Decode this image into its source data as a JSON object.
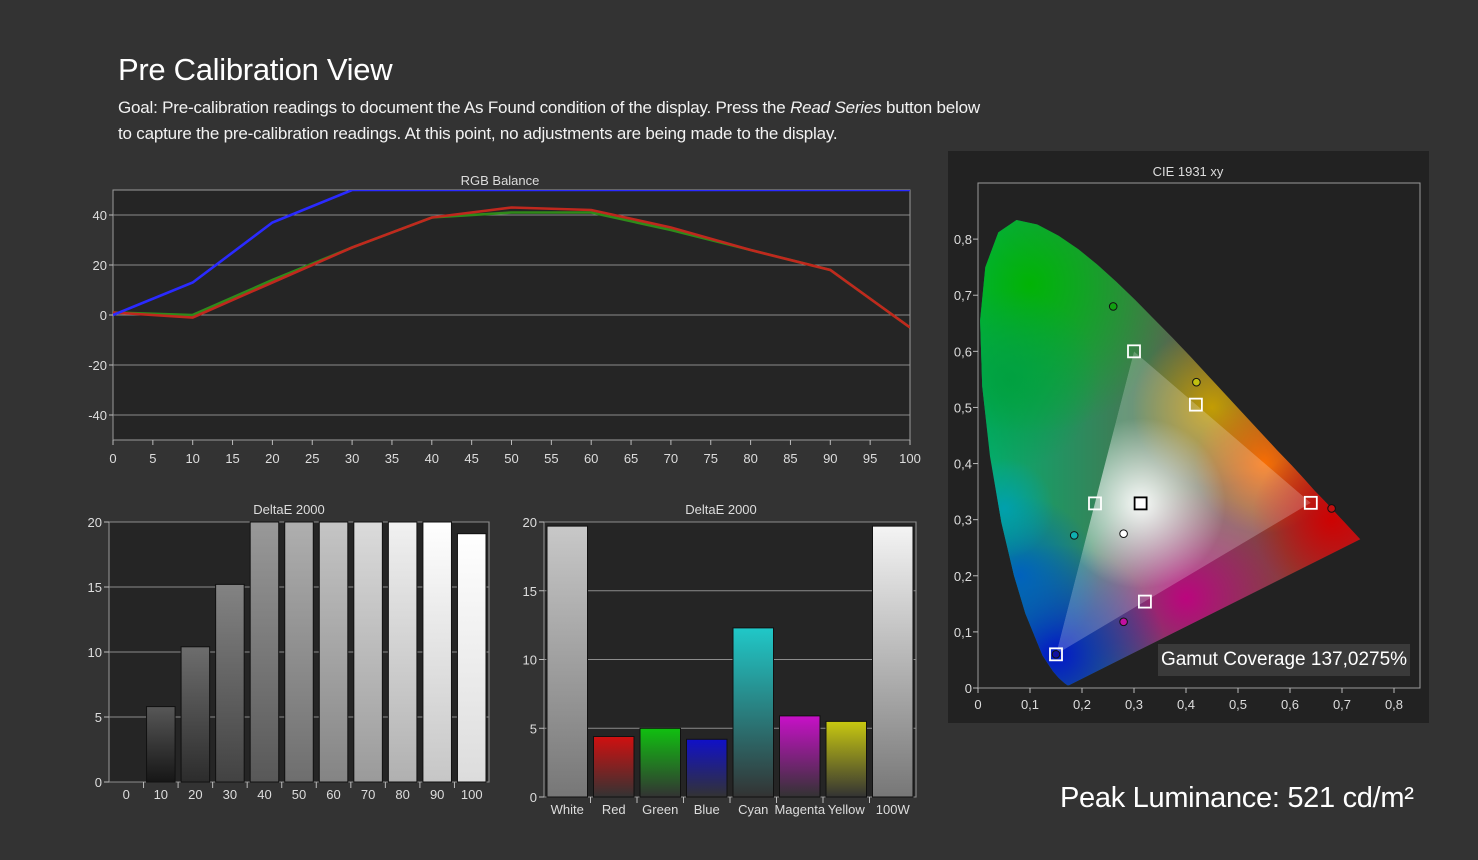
{
  "header": {
    "title": "Pre Calibration View",
    "goal_text_1": "Goal: Pre-calibration readings to document the As Found condition of the display. Press the ",
    "goal_italic": "Read Series",
    "goal_text_2": " button below to capture the pre-calibration readings. At this point, no adjustments are being made to the display."
  },
  "colors": {
    "background": "#333333",
    "plot_bg": "#222222",
    "red": "#c0281e",
    "green": "#2f8a1a",
    "blue": "#2a2aff"
  },
  "chart_data": [
    {
      "id": "rgb_balance",
      "type": "line",
      "title": "RGB Balance",
      "xlim": [
        0,
        100
      ],
      "ylim": [
        -50,
        50
      ],
      "x_ticks": [
        0,
        5,
        10,
        15,
        20,
        25,
        30,
        35,
        40,
        45,
        50,
        55,
        60,
        65,
        70,
        75,
        80,
        85,
        90,
        95,
        100
      ],
      "y_ticks": [
        40,
        20,
        0,
        -20,
        -40
      ],
      "y_tick_labels": [
        "40",
        "20",
        "0",
        "-20",
        "-40"
      ],
      "grid": true,
      "series": [
        {
          "color": "#2a2aff",
          "x": [
            0,
            10,
            20,
            30,
            40,
            50,
            60,
            70,
            80,
            90,
            100
          ],
          "y": [
            0,
            13,
            37,
            50,
            50,
            50,
            50,
            50,
            50,
            50,
            50
          ]
        },
        {
          "color": "#c0281e",
          "x": [
            0,
            10,
            20,
            30,
            40,
            50,
            60,
            70,
            80,
            90,
            100
          ],
          "y": [
            1,
            -1,
            13,
            27,
            39,
            43,
            42,
            35,
            26,
            18,
            -5
          ]
        },
        {
          "color": "#2f8a1a",
          "x": [
            0,
            10,
            20,
            30,
            40,
            50,
            60,
            70,
            80,
            90,
            100
          ],
          "y": [
            1,
            0,
            14,
            27,
            39,
            41,
            41,
            34,
            26,
            18,
            -5
          ]
        }
      ]
    },
    {
      "id": "deltae_grayscale",
      "type": "bar",
      "title": "DeltaE 2000",
      "categories": [
        "0",
        "10",
        "20",
        "30",
        "40",
        "50",
        "60",
        "70",
        "80",
        "90",
        "100"
      ],
      "values": [
        0,
        5.8,
        10.4,
        15.2,
        20,
        20,
        20,
        20,
        20,
        20,
        19.1
      ],
      "bar_gray": [
        0,
        10,
        20,
        30,
        40,
        50,
        60,
        70,
        80,
        90,
        100
      ],
      "ylim": [
        0,
        20
      ],
      "y_ticks": [
        20,
        15,
        10,
        5,
        0
      ],
      "y_tick_labels": [
        "20",
        "15",
        "10",
        "5",
        "0"
      ],
      "grid": true
    },
    {
      "id": "deltae_colors",
      "type": "bar",
      "title": "DeltaE 2000",
      "categories": [
        "White",
        "Red",
        "Green",
        "Blue",
        "Cyan",
        "Magenta",
        "Yellow",
        "100W"
      ],
      "values": [
        19.7,
        4.4,
        5.0,
        4.2,
        12.3,
        5.9,
        5.5,
        19.7
      ],
      "bar_colors": [
        "#c8c8c8",
        "#d01010",
        "#10c010",
        "#1010c8",
        "#20c8c8",
        "#c810c8",
        "#c8c810",
        "#f4f4f4"
      ],
      "ylim": [
        0,
        20
      ],
      "y_ticks": [
        20,
        15,
        10,
        5,
        0
      ],
      "y_tick_labels": [
        "20",
        "15",
        "10",
        "5",
        "0"
      ],
      "grid": true
    },
    {
      "id": "cie_1931",
      "type": "scatter",
      "title": "CIE 1931 xy",
      "xlim": [
        0,
        0.85
      ],
      "ylim": [
        0,
        0.9
      ],
      "x_ticks": [
        0,
        0.1,
        0.2,
        0.3,
        0.4,
        0.5,
        0.6,
        0.7,
        0.8
      ],
      "x_tick_labels": [
        "0",
        "0,1",
        "0,2",
        "0,3",
        "0,4",
        "0,5",
        "0,6",
        "0,7",
        "0,8"
      ],
      "y_ticks": [
        0,
        0.1,
        0.2,
        0.3,
        0.4,
        0.5,
        0.6,
        0.7,
        0.8
      ],
      "y_tick_labels": [
        "0",
        "0,1",
        "0,2",
        "0,3",
        "0,4",
        "0,5",
        "0,6",
        "0,7",
        "0,8"
      ],
      "target_points": [
        {
          "name": "red",
          "x": 0.64,
          "y": 0.33
        },
        {
          "name": "green",
          "x": 0.3,
          "y": 0.6
        },
        {
          "name": "blue",
          "x": 0.15,
          "y": 0.06
        },
        {
          "name": "white",
          "x": 0.3127,
          "y": 0.329
        },
        {
          "name": "cyan",
          "x": 0.225,
          "y": 0.329
        },
        {
          "name": "magenta",
          "x": 0.321,
          "y": 0.154
        },
        {
          "name": "yellow",
          "x": 0.419,
          "y": 0.505
        }
      ],
      "measured_points": [
        {
          "name": "red",
          "x": 0.68,
          "y": 0.32,
          "color": "#c01010"
        },
        {
          "name": "green",
          "x": 0.26,
          "y": 0.68,
          "color": "#10a010"
        },
        {
          "name": "blue",
          "x": 0.15,
          "y": 0.06,
          "color": "#1010a0"
        },
        {
          "name": "white",
          "x": 0.28,
          "y": 0.275,
          "color": "#ffffff"
        },
        {
          "name": "cyan",
          "x": 0.185,
          "y": 0.272,
          "color": "#10b0b0"
        },
        {
          "name": "magenta",
          "x": 0.28,
          "y": 0.118,
          "color": "#c010a0"
        },
        {
          "name": "yellow",
          "x": 0.42,
          "y": 0.545,
          "color": "#c0c010"
        }
      ],
      "gamut_coverage_label": "Gamut Coverage 137,0275%"
    }
  ],
  "footer": {
    "peak_label": "Peak Luminance: 521 cd/m²"
  }
}
